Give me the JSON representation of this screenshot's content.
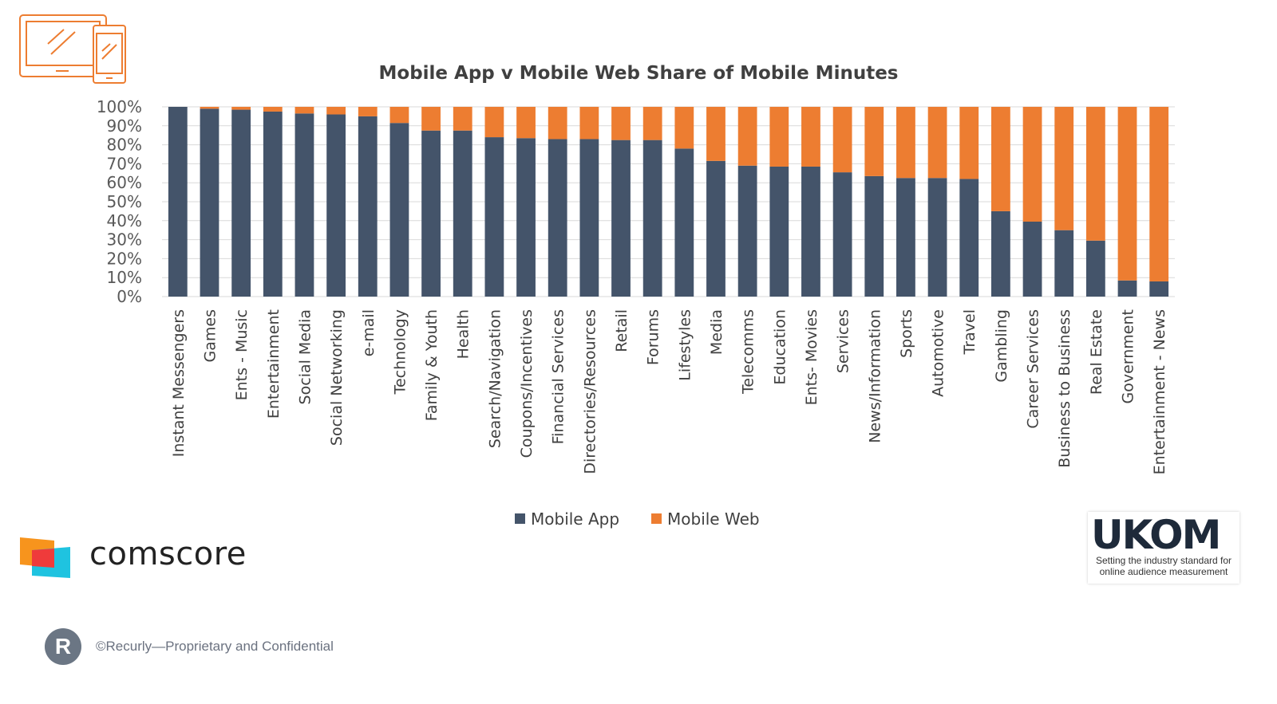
{
  "logos": {
    "device_icon": "devices-icon",
    "comscore": "comscore",
    "ukom": "UKOM",
    "ukom_tagline": "Setting the industry standard for online audience measurement",
    "recurly": "R"
  },
  "footer": {
    "text": "©Recurly—Proprietary and Confidential"
  },
  "chart_data": {
    "type": "bar",
    "stacked": true,
    "title": "Mobile App v Mobile Web Share of Mobile Minutes",
    "xlabel": "",
    "ylabel": "",
    "ylim": [
      0,
      100
    ],
    "yticks": [
      "0%",
      "10%",
      "20%",
      "30%",
      "40%",
      "50%",
      "60%",
      "70%",
      "80%",
      "90%",
      "100%"
    ],
    "grid": true,
    "legend_position": "bottom",
    "categories": [
      "Instant Messengers",
      "Games",
      "Ents - Music",
      "Entertainment",
      "Social Media",
      "Social Networking",
      "e-mail",
      "Technology",
      "Family & Youth",
      "Health",
      "Search/Navigation",
      "Coupons/Incentives",
      "Financial Services",
      "Directories/Resources",
      "Retail",
      "Forums",
      "Lifestyles",
      "Media",
      "Telecomms",
      "Education",
      "Ents- Movies",
      "Services",
      "News/Information",
      "Sports",
      "Automotive",
      "Travel",
      "Gambling",
      "Career Services",
      "Business to Business",
      "Real Estate",
      "Government",
      "Entertainment - News"
    ],
    "series": [
      {
        "name": "Mobile App",
        "color": "#44546a",
        "values": [
          100,
          99,
          98.5,
          97.5,
          96.5,
          96,
          95,
          91.5,
          87.5,
          87.5,
          84,
          83.5,
          83,
          83,
          82.5,
          82.5,
          78,
          71.5,
          69,
          68.5,
          68.5,
          65.5,
          63.5,
          62.5,
          62.5,
          62,
          45,
          39.5,
          35,
          29.5,
          8.5,
          8
        ]
      },
      {
        "name": "Mobile Web",
        "color": "#ed7d31",
        "values": [
          0,
          1,
          1.5,
          2.5,
          3.5,
          4,
          5,
          8.5,
          12.5,
          12.5,
          16,
          16.5,
          17,
          17,
          17.5,
          17.5,
          22,
          28.5,
          31,
          31.5,
          31.5,
          34.5,
          36.5,
          37.5,
          37.5,
          38,
          55,
          60.5,
          65,
          70.5,
          91.5,
          92
        ]
      }
    ]
  }
}
